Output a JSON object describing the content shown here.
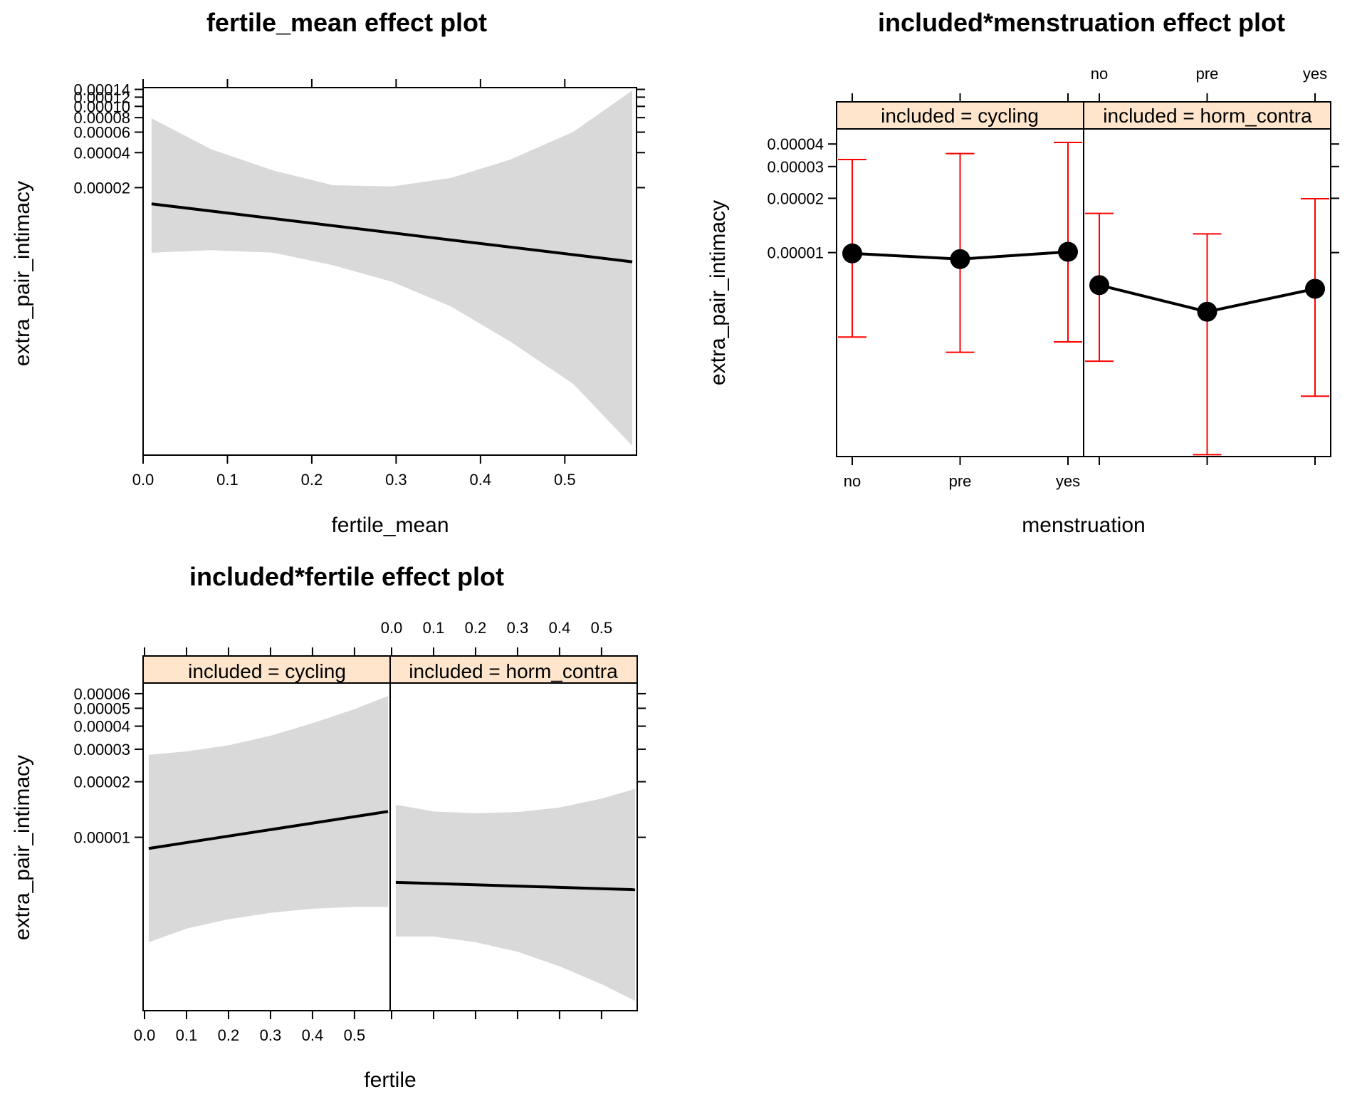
{
  "chart_data": [
    {
      "type": "line",
      "title": "fertile_mean effect plot",
      "xlabel": "fertile_mean",
      "ylabel": "extra_pair_intimacy",
      "xlim": [
        0.0,
        0.585
      ],
      "y_scale": "log",
      "xticks": [
        "0.0",
        "0.1",
        "0.2",
        "0.3",
        "0.4",
        "0.5"
      ],
      "yticks": [
        "0.00002",
        "0.00004",
        "0.00006",
        "0.00008",
        "0.00010",
        "0.00012",
        "0.00014"
      ],
      "series": [
        {
          "x": [
            0.01,
            0.58
          ],
          "values": [
            1.45e-05,
            4.6e-06
          ]
        }
      ],
      "confidence_band": {
        "x": [
          0.01,
          0.08,
          0.155,
          0.225,
          0.295,
          0.365,
          0.435,
          0.51,
          0.58
        ],
        "lower": [
          5.5e-06,
          5.8e-06,
          5.5e-06,
          4.3e-06,
          3.1e-06,
          1.9e-06,
          9.5e-07,
          4.1e-07,
          1.2e-07
        ],
        "upper": [
          7.9e-05,
          4.3e-05,
          2.8e-05,
          2.1e-05,
          2.05e-05,
          2.42e-05,
          3.48e-05,
          6.04e-05,
          0.000137
        ]
      },
      "band_color": "#d9d9d9",
      "line_color": "#000000"
    },
    {
      "type": "line",
      "title": "included*menstruation effect plot",
      "xlabel": "menstruation",
      "ylabel": "extra_pair_intimacy",
      "y_scale": "log",
      "categories": [
        "no",
        "pre",
        "yes"
      ],
      "yticks": [
        "0.00001",
        "0.00002",
        "0.00003",
        "0.00004"
      ],
      "panels": [
        {
          "strip": "included = cycling",
          "values": [
            9.9e-06,
            9.2e-06,
            1.01e-05
          ],
          "lower": [
            3.4e-06,
            2.8e-06,
            3.2e-06
          ],
          "upper": [
            3.28e-05,
            3.54e-05,
            4.08e-05
          ]
        },
        {
          "strip": "included = horm_contra",
          "values": [
            6.6e-06,
            4.7e-06,
            6.3e-06
          ],
          "lower": [
            2.5e-06,
            7.58e-07,
            1.6e-06
          ],
          "upper": [
            1.65e-05,
            1.27e-05,
            1.99e-05
          ]
        }
      ],
      "strip_color": "#ffe5cc",
      "errorbar_color": "#ff0000",
      "line_color": "#000000"
    },
    {
      "type": "line",
      "title": "included*fertile effect plot",
      "xlabel": "fertile",
      "ylabel": "extra_pair_intimacy",
      "xlim": [
        0.0,
        0.585
      ],
      "y_scale": "log",
      "xticks": [
        "0.0",
        "0.1",
        "0.2",
        "0.3",
        "0.4",
        "0.5"
      ],
      "yticks": [
        "0.00001",
        "0.00002",
        "0.00003",
        "0.00004",
        "0.00005",
        "0.00006"
      ],
      "panels": [
        {
          "strip": "included = cycling",
          "x": [
            0.01,
            0.58
          ],
          "values": [
            8.7e-06,
            1.38e-05
          ],
          "band": {
            "x": [
              0.01,
              0.1,
              0.2,
              0.3,
              0.4,
              0.5,
              0.58
            ],
            "lower": [
              2.7e-06,
              3.2e-06,
              3.6e-06,
              3.9e-06,
              4.1e-06,
              4.2e-06,
              4.2e-06
            ],
            "upper": [
              2.8e-05,
              2.92e-05,
              3.15e-05,
              3.55e-05,
              4.15e-05,
              4.95e-05,
              5.83e-05
            ]
          }
        },
        {
          "strip": "included = horm_contra",
          "x": [
            0.01,
            0.58
          ],
          "values": [
            5.7e-06,
            5.2e-06
          ],
          "band": {
            "x": [
              0.01,
              0.1,
              0.2,
              0.3,
              0.4,
              0.5,
              0.58
            ],
            "lower": [
              2.9e-06,
              2.9e-06,
              2.7e-06,
              2.4e-06,
              2e-06,
              1.6e-06,
              1.3e-06
            ],
            "upper": [
              1.5e-05,
              1.38e-05,
              1.35e-05,
              1.37e-05,
              1.45e-05,
              1.62e-05,
              1.83e-05
            ]
          }
        }
      ],
      "strip_color": "#ffe5cc",
      "band_color": "#d9d9d9",
      "line_color": "#000000"
    }
  ]
}
